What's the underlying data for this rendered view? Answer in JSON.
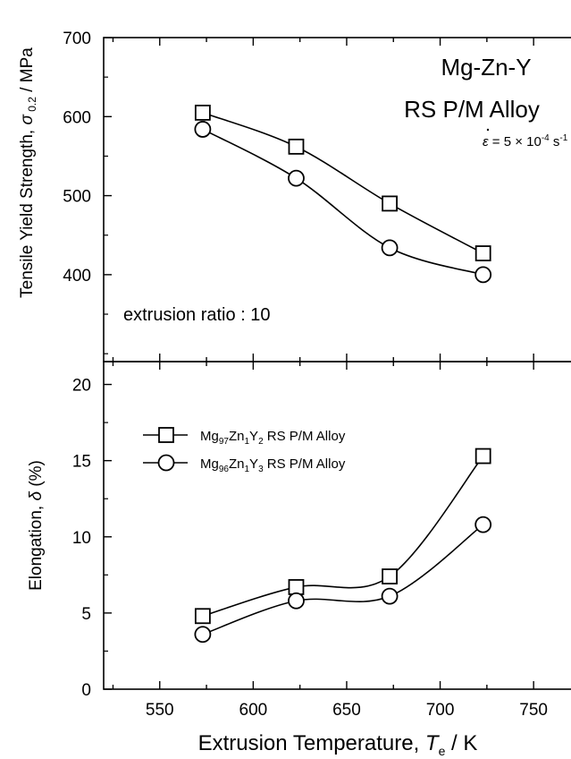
{
  "chart_data": [
    {
      "type": "line",
      "ylabel": "Tensile Yield Strength, σ 0.2 / MPa",
      "ylabel_parts": {
        "main": "Tensile Yield Strength,",
        "symbol": "σ",
        "sub": "0.2",
        "unit": " / MPa"
      },
      "ylim": [
        290,
        700
      ],
      "yticks": [
        400,
        500,
        600,
        700
      ],
      "xlim": [
        520,
        770
      ],
      "xticks": [
        550,
        600,
        650,
        700,
        750
      ],
      "annotation_title": [
        "Mg-Zn-Y",
        "RS P/M Alloy"
      ],
      "annotation_rate": {
        "symbol": "ε",
        "text": " = 5 × 10",
        "exp": "-4",
        "unit": " s",
        "unit_exp": "-1"
      },
      "annotation_note": "extrusion ratio : 10",
      "series": [
        {
          "legend_key": 0,
          "marker": "square",
          "x": [
            573,
            623,
            673,
            723
          ],
          "y": [
            605,
            562,
            490,
            427
          ]
        },
        {
          "legend_key": 1,
          "marker": "circle",
          "x": [
            573,
            623,
            673,
            723
          ],
          "y": [
            584,
            522,
            434,
            400
          ]
        }
      ]
    },
    {
      "type": "line",
      "ylabel": "Elongation, δ (%)",
      "ylabel_parts": {
        "main": "Elongation,",
        "symbol": "δ",
        "unit": " (%)"
      },
      "ylim": [
        0,
        21.5
      ],
      "yticks": [
        0,
        5,
        10,
        15,
        20
      ],
      "xlim": [
        520,
        770
      ],
      "xticks": [
        550,
        600,
        650,
        700,
        750
      ],
      "xlabel": "Extrusion Temperature, T e / K",
      "xlabel_parts": {
        "main": "Extrusion Temperature, ",
        "symbol": "T",
        "sub": "e",
        "unit": " / K"
      },
      "series": [
        {
          "marker": "square",
          "x": [
            573,
            623,
            673,
            723
          ],
          "y": [
            4.8,
            6.7,
            7.4,
            15.3
          ]
        },
        {
          "marker": "circle",
          "x": [
            573,
            623,
            673,
            723
          ],
          "y": [
            3.6,
            5.8,
            6.1,
            10.8
          ]
        }
      ]
    }
  ],
  "legend": [
    {
      "name": "Mg97Zn1Y2 RS P/M Alloy",
      "parts": [
        [
          "Mg",
          ""
        ],
        [
          "97",
          "sub"
        ],
        [
          "Zn",
          ""
        ],
        [
          "1",
          "sub"
        ],
        [
          "Y",
          ""
        ],
        [
          "2",
          "sub"
        ],
        [
          " RS P/M Alloy",
          ""
        ]
      ]
    },
    {
      "name": "Mg96Zn1Y3 RS P/M Alloy",
      "parts": [
        [
          "Mg",
          ""
        ],
        [
          "96",
          "sub"
        ],
        [
          "Zn",
          ""
        ],
        [
          "1",
          "sub"
        ],
        [
          "Y",
          ""
        ],
        [
          "3",
          "sub"
        ],
        [
          " RS P/M Alloy",
          ""
        ]
      ]
    }
  ]
}
